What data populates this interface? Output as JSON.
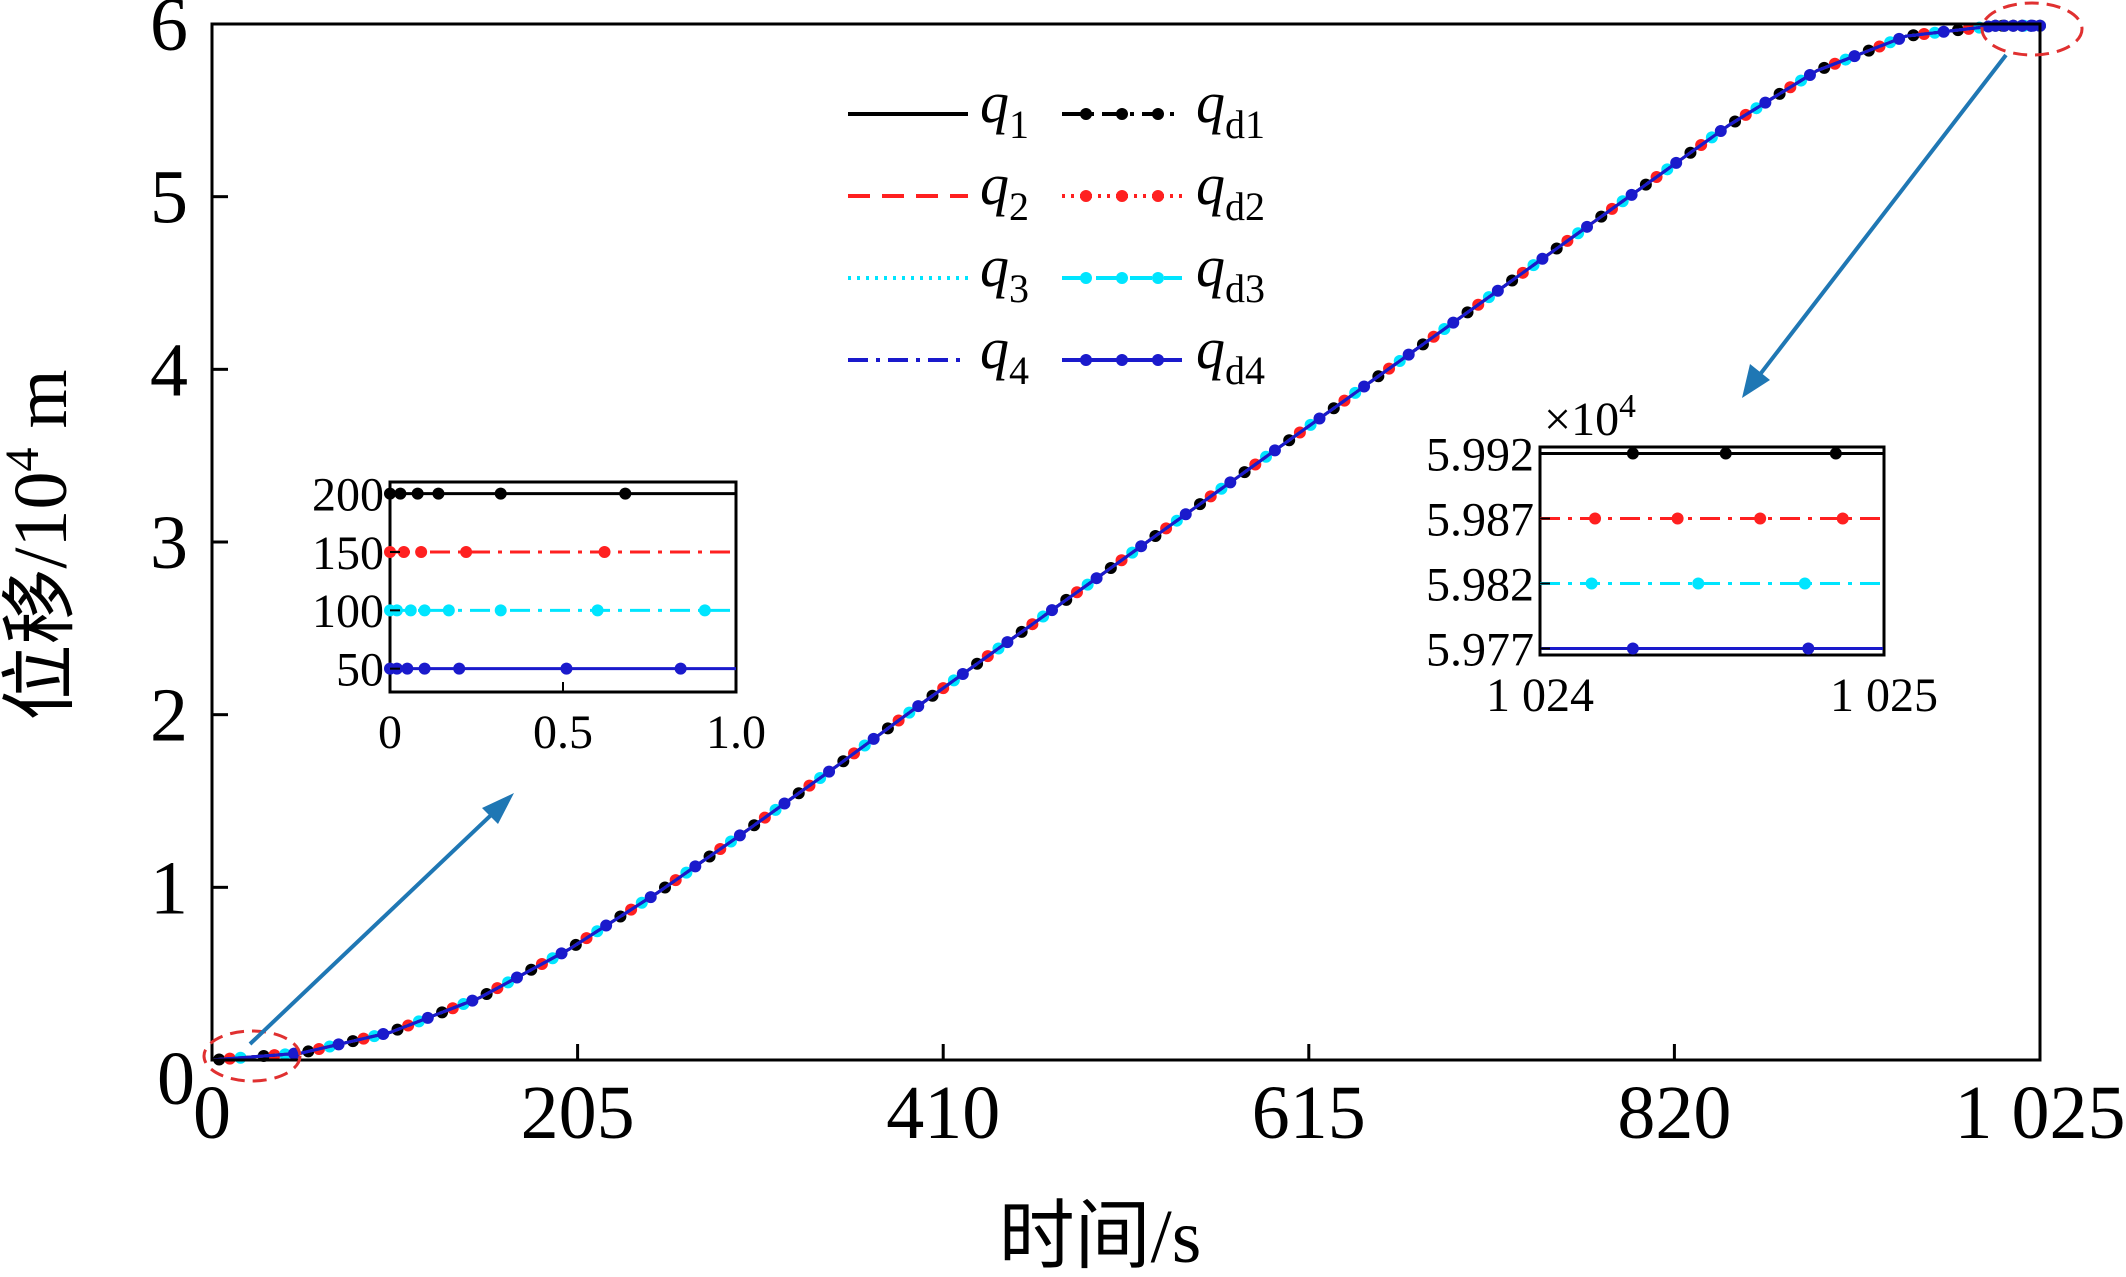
{
  "chart_data": [
    {
      "id": "main",
      "type": "line",
      "title": "",
      "xlabel": "时间/s",
      "ylabel": "位移/10⁴ m",
      "ylabel_parts": {
        "prefix": "位移/10",
        "sup": "4",
        "suffix": " m"
      },
      "xlim": [
        0,
        1025
      ],
      "ylim": [
        0,
        6
      ],
      "xticks": [
        0,
        205,
        410,
        615,
        820,
        1025
      ],
      "xtick_labels": [
        "0",
        "205",
        "410",
        "615",
        "820",
        "1 025"
      ],
      "yticks": [
        1,
        2,
        3,
        4,
        5,
        6
      ],
      "ytick_labels": [
        "1",
        "2",
        "3",
        "4",
        "5",
        "6"
      ],
      "grid": false,
      "legend_position": "top-center",
      "profile": {
        "t": [
          0,
          50,
          100,
          150,
          200,
          250,
          300,
          350,
          400,
          450,
          500,
          550,
          600,
          650,
          700,
          750,
          800,
          850,
          900,
          950,
          1000,
          1025
        ],
        "y": [
          0.0,
          0.04,
          0.16,
          0.36,
          0.64,
          0.97,
          1.33,
          1.7,
          2.08,
          2.45,
          2.82,
          3.19,
          3.56,
          3.93,
          4.3,
          4.67,
          5.04,
          5.41,
          5.73,
          5.93,
          5.99,
          5.99
        ]
      },
      "series": [
        {
          "name": "q1",
          "label_main": "q",
          "label_sub": "1",
          "color": "#000000",
          "dash": "solid",
          "markers": false
        },
        {
          "name": "q2",
          "label_main": "q",
          "label_sub": "2",
          "color": "#ff2020",
          "dash": "dashed",
          "markers": false
        },
        {
          "name": "q3",
          "label_main": "q",
          "label_sub": "3",
          "color": "#00e5ff",
          "dash": "dotted",
          "markers": false
        },
        {
          "name": "q4",
          "label_main": "q",
          "label_sub": "4",
          "color": "#1a1acc",
          "dash": "dashdot",
          "markers": false
        },
        {
          "name": "qd1",
          "label_main": "q",
          "label_sub": "d1",
          "color": "#000000",
          "dash": "dashdot",
          "markers": true
        },
        {
          "name": "qd2",
          "label_main": "q",
          "label_sub": "d2",
          "color": "#ff2020",
          "dash": "dotted",
          "markers": true
        },
        {
          "name": "qd3",
          "label_main": "q",
          "label_sub": "d3",
          "color": "#00e5ff",
          "dash": "dashed",
          "markers": true
        },
        {
          "name": "qd4",
          "label_main": "q",
          "label_sub": "d4",
          "color": "#1a1acc",
          "dash": "solid",
          "markers": true
        }
      ]
    },
    {
      "id": "inset-start",
      "type": "line",
      "xlim": [
        0,
        1.0
      ],
      "ylim": [
        30,
        210
      ],
      "xticks": [
        0,
        0.5,
        1.0
      ],
      "xtick_labels": [
        "0",
        "0.5",
        "1.0"
      ],
      "yticks": [
        50,
        100,
        150,
        200
      ],
      "ytick_labels": [
        "50",
        "100",
        "150",
        "200"
      ],
      "series": [
        {
          "name": "qd1",
          "color": "#000000",
          "dash": "solid",
          "value": 200,
          "markers_x": [
            0.0,
            0.03,
            0.08,
            0.14,
            0.32,
            0.68
          ]
        },
        {
          "name": "qd2",
          "color": "#ff2020",
          "dash": "dashdot",
          "value": 150,
          "markers_x": [
            0.0,
            0.04,
            0.09,
            0.22,
            0.62
          ]
        },
        {
          "name": "qd3",
          "color": "#00e5ff",
          "dash": "dashdot",
          "value": 100,
          "markers_x": [
            0.0,
            0.02,
            0.06,
            0.1,
            0.17,
            0.32,
            0.6,
            0.91
          ]
        },
        {
          "name": "qd4",
          "color": "#1a1acc",
          "dash": "solid",
          "value": 50,
          "markers_x": [
            0.0,
            0.02,
            0.05,
            0.1,
            0.2,
            0.51,
            0.84
          ]
        }
      ]
    },
    {
      "id": "inset-end",
      "type": "line",
      "multiplier_label": "×10",
      "multiplier_exp": "4",
      "xlim": [
        1024,
        1025
      ],
      "ylim": [
        5.9765,
        5.9925
      ],
      "xticks": [
        1024,
        1025
      ],
      "xtick_labels": [
        "1 024",
        "1 025"
      ],
      "yticks": [
        5.977,
        5.982,
        5.987,
        5.992
      ],
      "ytick_labels": [
        "5.977",
        "5.982",
        "5.987",
        "5.992"
      ],
      "series": [
        {
          "name": "qd1",
          "color": "#000000",
          "dash": "solid",
          "value": 5.992,
          "markers_x": [
            1024.27,
            1024.54,
            1024.86
          ]
        },
        {
          "name": "qd2",
          "color": "#ff2020",
          "dash": "dashdot",
          "value": 5.987,
          "markers_x": [
            1024.16,
            1024.4,
            1024.64,
            1024.88
          ]
        },
        {
          "name": "qd3",
          "color": "#00e5ff",
          "dash": "dashdot",
          "value": 5.982,
          "markers_x": [
            1024.15,
            1024.46,
            1024.77
          ]
        },
        {
          "name": "qd4",
          "color": "#1a1acc",
          "dash": "solid",
          "value": 5.977,
          "markers_x": [
            1024.27,
            1024.78
          ]
        }
      ]
    }
  ]
}
